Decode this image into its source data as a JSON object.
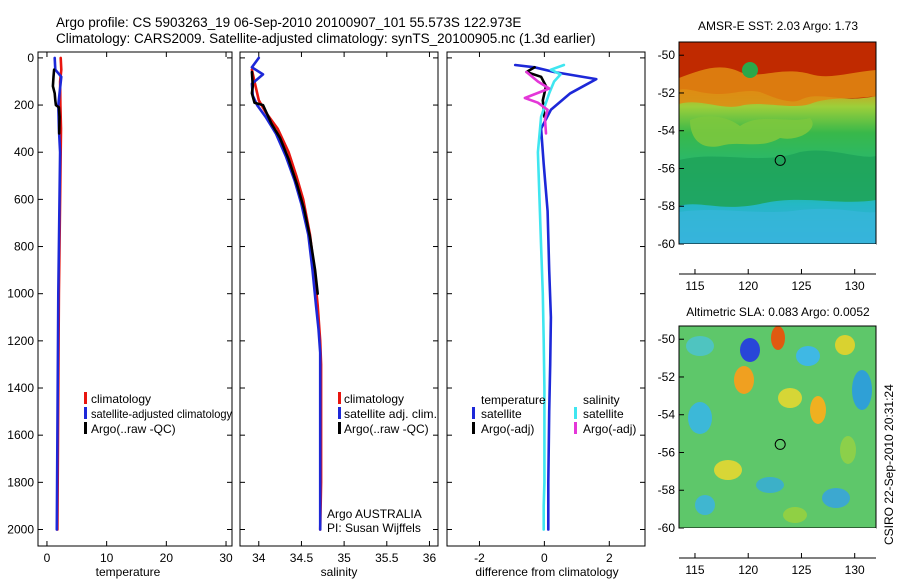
{
  "header": {
    "line1": "Argo profile: CS 5903263_19 06-Sep-2010 20100907_101 55.573S 122.973E",
    "line2": "Climatology: CARS2009. Satellite-adjusted climatology: synTS_20100905.nc (1.3d earlier)"
  },
  "colors": {
    "climatology": "#e8150f",
    "satellite": "#1d28d8",
    "argo": "#000000",
    "sal_satellite": "#3fe6f0",
    "sal_argo": "#e437d8"
  },
  "depth_axis": {
    "ticks": [
      "0",
      "200",
      "400",
      "600",
      "800",
      "1000",
      "1200",
      "1400",
      "1600",
      "1800",
      "2000"
    ]
  },
  "chart_data": [
    {
      "type": "line",
      "name": "temperature",
      "xlabel": "temperature",
      "xlim": [
        -1.5,
        31
      ],
      "ylim": [
        2070,
        -25
      ],
      "xticks": [
        0,
        10,
        20,
        30
      ],
      "xtick_labels": [
        "0",
        "10",
        "20",
        "30"
      ],
      "series": [
        {
          "name": "climatology",
          "color": "#e8150f",
          "x": [
            2.3,
            2.4,
            2.2,
            2.25,
            2.35,
            2.3,
            2.2,
            2.1,
            2.0,
            1.95,
            1.9,
            1.85,
            1.8,
            1.75
          ],
          "y": [
            0,
            50,
            100,
            200,
            300,
            400,
            600,
            800,
            1000,
            1200,
            1400,
            1600,
            1800,
            2000
          ]
        },
        {
          "name": "satellite-adjusted climatology",
          "color": "#1d28d8",
          "x": [
            1.3,
            1.4,
            2.4,
            1.9,
            2.0,
            2.2,
            2.1,
            2.0,
            1.9,
            1.85,
            1.8,
            1.75,
            1.7,
            1.65
          ],
          "y": [
            0,
            50,
            80,
            200,
            300,
            400,
            600,
            800,
            1000,
            1200,
            1400,
            1600,
            1800,
            2000
          ]
        },
        {
          "name": "Argo(..raw -QC)",
          "color": "#000000",
          "x": [
            1.2,
            1.1,
            1.0,
            1.3,
            1.4,
            1.5,
            2.0,
            2.1,
            2.05
          ],
          "y": [
            50,
            80,
            120,
            150,
            180,
            200,
            210,
            250,
            320
          ]
        }
      ]
    },
    {
      "type": "line",
      "name": "salinity",
      "xlabel": "salinity",
      "xlim": [
        33.78,
        36.1
      ],
      "ylim": [
        2070,
        -25
      ],
      "xticks": [
        34,
        34.5,
        35,
        35.5,
        36
      ],
      "xtick_labels": [
        "34",
        "34.5",
        "35",
        "35.5",
        "36"
      ],
      "series": [
        {
          "name": "climatology",
          "color": "#e8150f",
          "x": [
            33.92,
            33.95,
            34.0,
            34.08,
            34.22,
            34.35,
            34.44,
            34.52,
            34.6,
            34.65,
            34.69,
            34.72,
            34.73,
            34.73,
            34.73,
            34.73,
            34.72
          ],
          "y": [
            50,
            100,
            180,
            230,
            300,
            400,
            500,
            600,
            750,
            900,
            1050,
            1200,
            1300,
            1400,
            1600,
            1800,
            2000
          ]
        },
        {
          "name": "satellite adj. clim.",
          "color": "#1d28d8",
          "x": [
            34.0,
            33.92,
            34.05,
            33.92,
            33.93,
            33.98,
            34.08,
            34.2,
            34.32,
            34.42,
            34.5,
            34.58,
            34.63,
            34.67,
            34.7,
            34.72,
            34.72,
            34.72,
            34.72
          ],
          "y": [
            0,
            40,
            70,
            110,
            160,
            200,
            250,
            320,
            420,
            520,
            620,
            750,
            900,
            1050,
            1150,
            1250,
            1400,
            1700,
            2000
          ]
        },
        {
          "name": "Argo(..raw -QC)",
          "color": "#000000",
          "x": [
            33.92,
            33.93,
            33.92,
            33.95,
            34.05,
            34.1,
            34.15,
            34.25,
            34.35,
            34.45,
            34.53,
            34.6,
            34.66,
            34.69
          ],
          "y": [
            60,
            120,
            150,
            190,
            200,
            240,
            280,
            340,
            430,
            540,
            640,
            760,
            900,
            1000
          ]
        }
      ]
    },
    {
      "type": "line",
      "name": "difference",
      "xlabel": "difference from climatology",
      "xlim": [
        -3.0,
        3.1
      ],
      "ylim": [
        2070,
        -25
      ],
      "xticks": [
        -2,
        0,
        2
      ],
      "xtick_labels": [
        "-2",
        "0",
        "2"
      ],
      "legend_headers": [
        "temperature",
        "salinity"
      ],
      "series": [
        {
          "name": "satellite",
          "group": "temperature",
          "color": "#1d28d8",
          "x": [
            -0.9,
            -0.3,
            0.3,
            1.6,
            1.2,
            0.8,
            0.2,
            -0.1,
            -0.02,
            0.1,
            0.15,
            0.2,
            0.18,
            0.15,
            0.12,
            0.12
          ],
          "y": [
            30,
            40,
            60,
            90,
            120,
            150,
            220,
            300,
            450,
            650,
            900,
            1100,
            1300,
            1500,
            1800,
            2000
          ]
        },
        {
          "name": "Argo(-adj)",
          "group": "temperature",
          "color": "#000000",
          "x": [
            -0.3,
            -0.55,
            -0.1,
            0.05,
            -0.05,
            0.0
          ],
          "y": [
            40,
            60,
            80,
            120,
            180,
            250
          ]
        },
        {
          "name": "satellite",
          "group": "salinity",
          "color": "#3fe6f0",
          "x": [
            0.6,
            0.2,
            0.5,
            0.3,
            0.15,
            -0.1,
            -0.2,
            -0.15,
            -0.1,
            -0.05,
            -0.02,
            0.0,
            0.0,
            0.0,
            -0.02,
            -0.02
          ],
          "y": [
            30,
            50,
            70,
            100,
            150,
            250,
            400,
            600,
            800,
            1000,
            1200,
            1400,
            1600,
            1800,
            1900,
            2000
          ]
        },
        {
          "name": "Argo(-adj)",
          "group": "salinity",
          "color": "#e437d8",
          "x": [
            -0.55,
            -0.2,
            0.15,
            -0.6,
            -0.2,
            0.1,
            0.02,
            0.05
          ],
          "y": [
            60,
            100,
            130,
            170,
            190,
            220,
            260,
            320
          ]
        }
      ],
      "legend_items": [
        "satellite",
        "Argo(-adj)",
        "satellite",
        "Argo(-adj)"
      ]
    }
  ],
  "annotation": {
    "line1": "Argo AUSTRALIA",
    "line2": "PI: Susan Wijffels"
  },
  "maps": [
    {
      "name": "amsre-sst",
      "title": "AMSR-E SST: 2.03  Argo: 1.73",
      "xticks": [
        "115",
        "120",
        "125",
        "130"
      ],
      "yticks": [
        "-50",
        "-52",
        "-54",
        "-56",
        "-58",
        "-60"
      ],
      "lon_range": [
        113.5,
        132
      ],
      "lat_range": [
        -60,
        -49.3
      ],
      "argo_lon": 123.0,
      "argo_lat": -55.57
    },
    {
      "name": "altimetric-sla",
      "title": "Altimetric SLA: 0.083  Argo: 0.0052",
      "xticks": [
        "115",
        "120",
        "125",
        "130"
      ],
      "yticks": [
        "-50",
        "-52",
        "-54",
        "-56",
        "-58",
        "-60"
      ],
      "lon_range": [
        113.5,
        132
      ],
      "lat_range": [
        -60,
        -49.3
      ],
      "argo_lon": 123.0,
      "argo_lat": -55.57
    }
  ],
  "footer": {
    "credit": "CSIRO 22-Sep-2010 20:31:24"
  }
}
